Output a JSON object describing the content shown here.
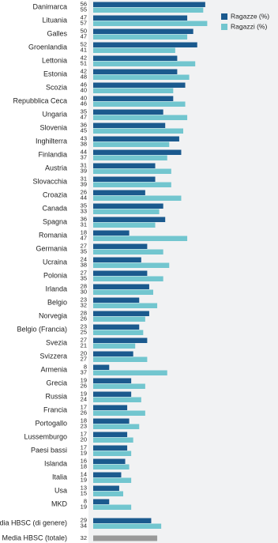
{
  "chart_data": {
    "type": "bar",
    "orientation": "horizontal",
    "categories": [
      "Danimarca",
      "Lituania",
      "Galles",
      "Groenlandia",
      "Lettonia",
      "Estonia",
      "Scozia",
      "Repubblica Ceca",
      "Ungaria",
      "Slovenia",
      "Inghilterra",
      "Finlandia",
      "Austria",
      "Slovacchia",
      "Croazia",
      "Canada",
      "Spagna",
      "Romania",
      "Germania",
      "Ucraina",
      "Polonia",
      "Irlanda",
      "Belgio",
      "Norvegia",
      "Belgio (Francia)",
      "Svezia",
      "Svizzera",
      "Armenia",
      "Grecia",
      "Russia",
      "Francia",
      "Portogallo",
      "Lussemburgo",
      "Paesi bassi",
      "Islanda",
      "Italia",
      "Usa",
      "MKD",
      "Media HBSC (di genere)"
    ],
    "series": [
      {
        "name": "Ragazze (%)",
        "color": "#1b5a8e",
        "values": [
          56,
          47,
          50,
          52,
          42,
          42,
          46,
          40,
          35,
          36,
          43,
          44,
          31,
          31,
          26,
          35,
          36,
          18,
          27,
          24,
          27,
          28,
          23,
          28,
          23,
          27,
          20,
          8,
          19,
          19,
          17,
          18,
          17,
          17,
          16,
          14,
          13,
          8,
          29
        ]
      },
      {
        "name": "Ragazzi (%)",
        "color": "#72c6cf",
        "values": [
          55,
          57,
          47,
          41,
          51,
          48,
          40,
          46,
          47,
          45,
          38,
          37,
          39,
          39,
          44,
          33,
          31,
          47,
          35,
          38,
          35,
          30,
          32,
          26,
          25,
          21,
          27,
          37,
          26,
          24,
          26,
          23,
          20,
          19,
          18,
          19,
          15,
          19,
          34
        ]
      }
    ],
    "total": {
      "label": "Media HBSC (totale)",
      "value": 32,
      "color": "#999999"
    },
    "xlim": [
      0,
      60
    ]
  }
}
